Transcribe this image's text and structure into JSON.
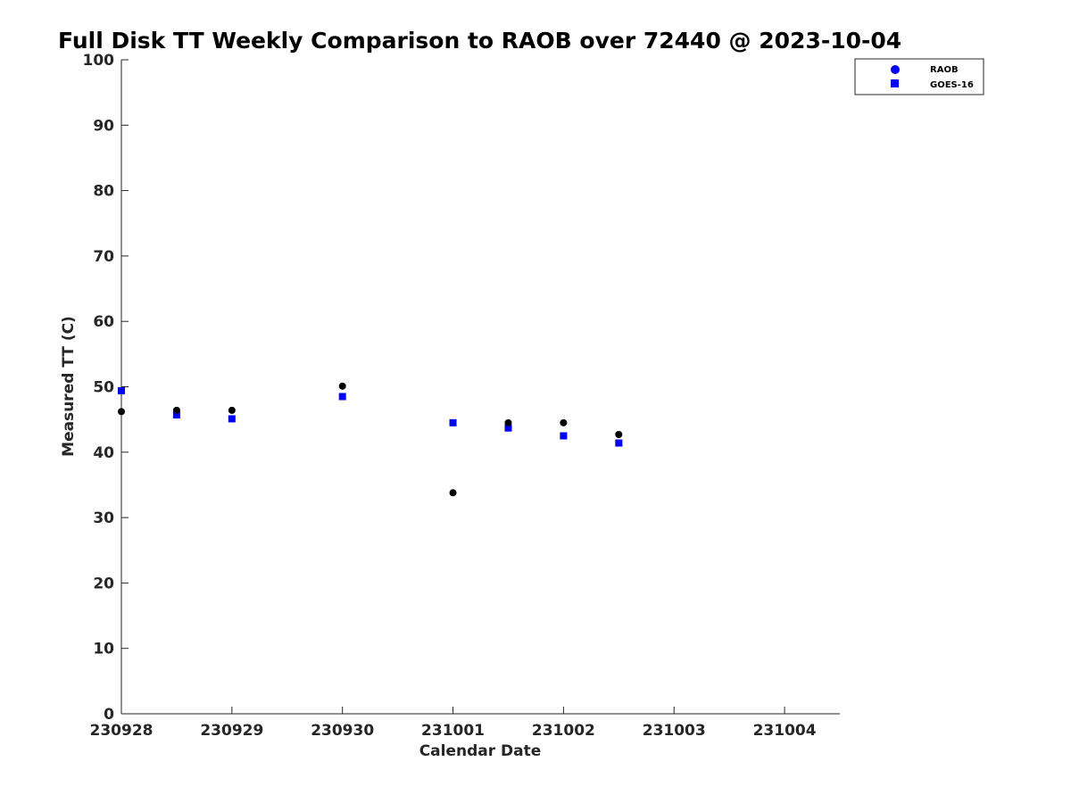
{
  "chart_data": {
    "type": "scatter",
    "title": "Full Disk TT Weekly Comparison to RAOB over 72440 @ 2023-10-04",
    "xlabel": "Calendar Date",
    "ylabel": "Measured TT (C)",
    "x_ticks": [
      "230928",
      "230929",
      "230930",
      "231001",
      "231002",
      "231003",
      "231004"
    ],
    "x_range_days": [
      0,
      6.5
    ],
    "ylim": [
      0,
      100
    ],
    "y_ticks": [
      0,
      10,
      20,
      30,
      40,
      50,
      60,
      70,
      80,
      90,
      100
    ],
    "grid": false,
    "legend_position": "top-right",
    "series": [
      {
        "name": "RAOB",
        "marker": "circle",
        "color": "#000000",
        "legend_color": "#0000ff",
        "points": [
          {
            "x": "230928 00Z",
            "y": 46.2
          },
          {
            "x": "230928 12Z",
            "y": 46.4
          },
          {
            "x": "230929 00Z",
            "y": 46.4
          },
          {
            "x": "230930 00Z",
            "y": 50.1
          },
          {
            "x": "231001 00Z",
            "y": 33.8
          },
          {
            "x": "231001 12Z",
            "y": 44.5
          },
          {
            "x": "231002 00Z",
            "y": 44.5
          },
          {
            "x": "231002 12Z",
            "y": 42.7
          }
        ]
      },
      {
        "name": "GOES-16",
        "marker": "square",
        "color": "#0000ff",
        "legend_color": "#0000ff",
        "points": [
          {
            "x": "230928 00Z",
            "y": 49.4
          },
          {
            "x": "230928 12Z",
            "y": 45.7
          },
          {
            "x": "230929 00Z",
            "y": 45.1
          },
          {
            "x": "230930 00Z",
            "y": 48.5
          },
          {
            "x": "231001 00Z",
            "y": 44.5
          },
          {
            "x": "231001 12Z",
            "y": 43.7
          },
          {
            "x": "231002 00Z",
            "y": 42.5
          },
          {
            "x": "231002 12Z",
            "y": 41.4
          }
        ]
      }
    ]
  }
}
